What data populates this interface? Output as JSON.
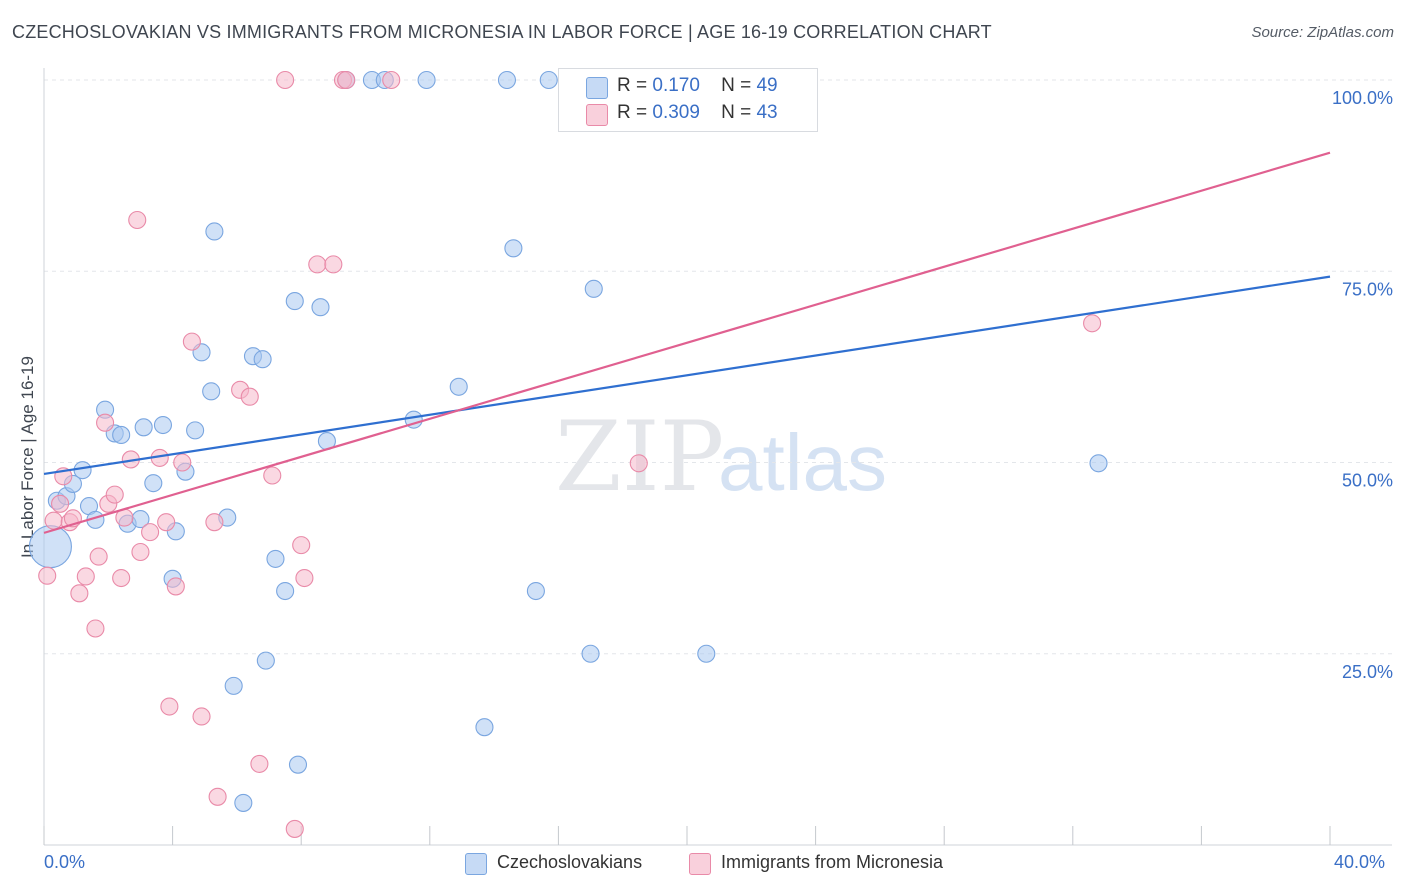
{
  "title": "CZECHOSLOVAKIAN VS IMMIGRANTS FROM MICRONESIA IN LABOR FORCE | AGE 16-19 CORRELATION CHART",
  "source": "Source: ZipAtlas.com",
  "watermark": {
    "zip": "ZIP",
    "atlas": "atlas"
  },
  "legend": {
    "rows": [
      {
        "r_label": "R =",
        "r_value": "0.170",
        "n_label": "N =",
        "n_value": "49",
        "color": "#a9c8f0"
      },
      {
        "r_label": "R =",
        "r_value": "0.309",
        "n_label": "N =",
        "n_value": "43",
        "color": "#f5b8cb"
      }
    ]
  },
  "bottom_legend": [
    {
      "label": "Czechoslovakians",
      "color": "#a9c8f0"
    },
    {
      "label": "Immigrants from Micronesia",
      "color": "#f5b8cb"
    }
  ],
  "colors": {
    "blue_fill": "#a9c8f0",
    "blue_stroke": "#7aa6e0",
    "blue_line": "#2f6fd0",
    "pink_fill": "#f5b8cb",
    "pink_stroke": "#e98aa8",
    "pink_line": "#e06090",
    "tick_label": "#3a6fc6",
    "grid": "#e3e6ea"
  },
  "chart_data": {
    "type": "scatter",
    "title": "CZECHOSLOVAKIAN VS IMMIGRANTS FROM MICRONESIA IN LABOR FORCE | AGE 16-19 CORRELATION CHART",
    "xlabel": "",
    "ylabel": "In Labor Force | Age 16-19",
    "xlim": [
      0,
      40
    ],
    "ylim": [
      0,
      100
    ],
    "x_tick_labels": [
      "0.0%",
      "40.0%"
    ],
    "y_tick_labels": [
      "25.0%",
      "50.0%",
      "75.0%",
      "100.0%"
    ],
    "y_ticks": [
      25,
      50,
      75,
      100
    ],
    "grid": "horizontal dashed",
    "legend_position": "top-center",
    "series": [
      {
        "name": "Czechoslovakians",
        "trend": {
          "x": [
            0,
            40
          ],
          "y": [
            48.5,
            74.3
          ]
        },
        "points": [
          {
            "x": 0.2,
            "y": 39.0,
            "size": "large"
          },
          {
            "x": 0.4,
            "y": 45.0
          },
          {
            "x": 0.7,
            "y": 45.6
          },
          {
            "x": 0.9,
            "y": 47.2
          },
          {
            "x": 1.2,
            "y": 49.0
          },
          {
            "x": 1.4,
            "y": 44.3
          },
          {
            "x": 1.6,
            "y": 42.5
          },
          {
            "x": 1.9,
            "y": 56.9
          },
          {
            "x": 2.2,
            "y": 53.8
          },
          {
            "x": 2.4,
            "y": 53.6
          },
          {
            "x": 2.6,
            "y": 42.0
          },
          {
            "x": 3.0,
            "y": 42.6
          },
          {
            "x": 3.1,
            "y": 54.6
          },
          {
            "x": 3.4,
            "y": 47.3
          },
          {
            "x": 3.7,
            "y": 54.9
          },
          {
            "x": 4.0,
            "y": 34.8
          },
          {
            "x": 4.1,
            "y": 41.0
          },
          {
            "x": 4.4,
            "y": 48.8
          },
          {
            "x": 4.7,
            "y": 54.2
          },
          {
            "x": 5.2,
            "y": 59.3
          },
          {
            "x": 4.9,
            "y": 64.4
          },
          {
            "x": 5.3,
            "y": 80.2
          },
          {
            "x": 5.7,
            "y": 42.8
          },
          {
            "x": 5.9,
            "y": 20.8
          },
          {
            "x": 6.2,
            "y": 5.5
          },
          {
            "x": 6.5,
            "y": 63.9
          },
          {
            "x": 6.8,
            "y": 63.5
          },
          {
            "x": 6.9,
            "y": 24.1
          },
          {
            "x": 7.2,
            "y": 37.4
          },
          {
            "x": 7.5,
            "y": 33.2
          },
          {
            "x": 7.8,
            "y": 71.1
          },
          {
            "x": 7.9,
            "y": 10.5
          },
          {
            "x": 8.6,
            "y": 70.3
          },
          {
            "x": 8.8,
            "y": 52.8
          },
          {
            "x": 9.4,
            "y": 100.0
          },
          {
            "x": 10.2,
            "y": 100.0
          },
          {
            "x": 10.6,
            "y": 100.0
          },
          {
            "x": 11.9,
            "y": 100.0
          },
          {
            "x": 11.5,
            "y": 55.6
          },
          {
            "x": 12.9,
            "y": 59.9
          },
          {
            "x": 13.7,
            "y": 15.4
          },
          {
            "x": 14.4,
            "y": 100.0
          },
          {
            "x": 14.6,
            "y": 78.0
          },
          {
            "x": 15.3,
            "y": 33.2
          },
          {
            "x": 15.7,
            "y": 100.0
          },
          {
            "x": 17.0,
            "y": 25.0
          },
          {
            "x": 17.1,
            "y": 72.7
          },
          {
            "x": 20.6,
            "y": 25.0
          },
          {
            "x": 32.8,
            "y": 49.9
          }
        ]
      },
      {
        "name": "Immigrants from Micronesia",
        "trend": {
          "x": [
            0,
            40
          ],
          "y": [
            40.8,
            90.5
          ]
        },
        "points": [
          {
            "x": 0.1,
            "y": 35.2
          },
          {
            "x": 0.3,
            "y": 42.4
          },
          {
            "x": 0.5,
            "y": 44.6
          },
          {
            "x": 0.6,
            "y": 48.2
          },
          {
            "x": 0.8,
            "y": 42.2
          },
          {
            "x": 0.9,
            "y": 42.7
          },
          {
            "x": 1.1,
            "y": 32.9
          },
          {
            "x": 1.3,
            "y": 35.1
          },
          {
            "x": 1.6,
            "y": 28.3
          },
          {
            "x": 1.7,
            "y": 37.7
          },
          {
            "x": 1.9,
            "y": 55.2
          },
          {
            "x": 2.0,
            "y": 44.6
          },
          {
            "x": 2.2,
            "y": 45.8
          },
          {
            "x": 2.4,
            "y": 34.9
          },
          {
            "x": 2.5,
            "y": 42.8
          },
          {
            "x": 2.7,
            "y": 50.4
          },
          {
            "x": 2.9,
            "y": 81.7
          },
          {
            "x": 3.0,
            "y": 38.3
          },
          {
            "x": 3.3,
            "y": 40.9
          },
          {
            "x": 3.6,
            "y": 50.6
          },
          {
            "x": 3.8,
            "y": 42.2
          },
          {
            "x": 3.9,
            "y": 18.1
          },
          {
            "x": 4.1,
            "y": 33.8
          },
          {
            "x": 4.3,
            "y": 50.0
          },
          {
            "x": 4.6,
            "y": 65.8
          },
          {
            "x": 4.9,
            "y": 16.8
          },
          {
            "x": 5.3,
            "y": 42.2
          },
          {
            "x": 5.4,
            "y": 6.3
          },
          {
            "x": 6.1,
            "y": 59.5
          },
          {
            "x": 6.4,
            "y": 58.6
          },
          {
            "x": 6.7,
            "y": 10.6
          },
          {
            "x": 7.1,
            "y": 48.3
          },
          {
            "x": 7.5,
            "y": 100.0
          },
          {
            "x": 7.8,
            "y": 2.1
          },
          {
            "x": 8.0,
            "y": 39.2
          },
          {
            "x": 8.1,
            "y": 34.9
          },
          {
            "x": 8.5,
            "y": 75.9
          },
          {
            "x": 9.0,
            "y": 75.9
          },
          {
            "x": 9.3,
            "y": 100.0
          },
          {
            "x": 9.4,
            "y": 100.0
          },
          {
            "x": 10.8,
            "y": 100.0
          },
          {
            "x": 18.5,
            "y": 49.9
          },
          {
            "x": 32.6,
            "y": 68.2
          }
        ]
      }
    ]
  }
}
